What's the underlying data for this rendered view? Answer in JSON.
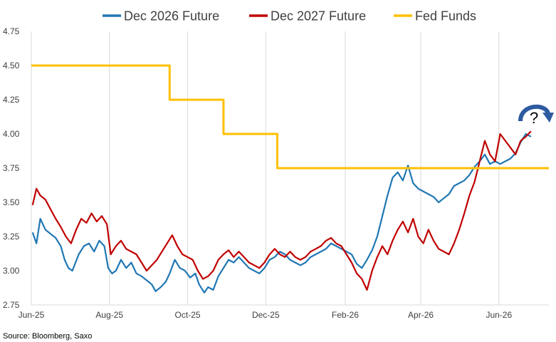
{
  "chart_data": {
    "type": "line",
    "source": "Source: Bloomberg, Saxo",
    "annotation": "?",
    "legend_position": "top",
    "grid": {
      "horizontal": false,
      "vertical": true
    },
    "colors": {
      "dec2026": "#1f77b4",
      "dec2027": "#c00000",
      "fedfunds": "#ffc000",
      "arrow": "#2e5aa0",
      "grid": "#d9d9d9"
    },
    "ylim": [
      2.75,
      4.75
    ],
    "y_ticks": [
      "4.75",
      "4.50",
      "4.25",
      "4.00",
      "3.75",
      "3.50",
      "3.25",
      "3.00",
      "2.75"
    ],
    "x_tick_labels": [
      "Jun-25",
      "Aug-25",
      "Oct-25",
      "Dec-25",
      "Feb-26",
      "Apr-26",
      "Jun-26"
    ],
    "x_tick_dates": [
      "2025-06-01",
      "2025-08-01",
      "2025-10-01",
      "2025-12-01",
      "2026-02-01",
      "2026-04-01",
      "2026-06-01"
    ],
    "x_range": [
      "2025-06-01",
      "2026-07-10"
    ],
    "series": [
      {
        "name": "Dec 2026 Future",
        "key": "dec2026",
        "points": [
          [
            "2025-06-02",
            3.28
          ],
          [
            "2025-06-05",
            3.2
          ],
          [
            "2025-06-08",
            3.38
          ],
          [
            "2025-06-12",
            3.3
          ],
          [
            "2025-06-16",
            3.27
          ],
          [
            "2025-06-20",
            3.24
          ],
          [
            "2025-06-24",
            3.18
          ],
          [
            "2025-06-27",
            3.08
          ],
          [
            "2025-06-30",
            3.02
          ],
          [
            "2025-07-03",
            3.0
          ],
          [
            "2025-07-08",
            3.12
          ],
          [
            "2025-07-12",
            3.18
          ],
          [
            "2025-07-16",
            3.2
          ],
          [
            "2025-07-20",
            3.14
          ],
          [
            "2025-07-24",
            3.22
          ],
          [
            "2025-07-28",
            3.18
          ],
          [
            "2025-07-31",
            3.02
          ],
          [
            "2025-08-03",
            2.98
          ],
          [
            "2025-08-06",
            3.0
          ],
          [
            "2025-08-10",
            3.08
          ],
          [
            "2025-08-14",
            3.02
          ],
          [
            "2025-08-18",
            3.06
          ],
          [
            "2025-08-22",
            2.98
          ],
          [
            "2025-08-26",
            2.96
          ],
          [
            "2025-08-30",
            2.93
          ],
          [
            "2025-09-03",
            2.9
          ],
          [
            "2025-09-06",
            2.85
          ],
          [
            "2025-09-10",
            2.88
          ],
          [
            "2025-09-14",
            2.92
          ],
          [
            "2025-09-17",
            2.98
          ],
          [
            "2025-09-21",
            3.08
          ],
          [
            "2025-09-25",
            3.02
          ],
          [
            "2025-09-29",
            3.0
          ],
          [
            "2025-10-03",
            2.95
          ],
          [
            "2025-10-07",
            2.98
          ],
          [
            "2025-10-10",
            2.9
          ],
          [
            "2025-10-14",
            2.84
          ],
          [
            "2025-10-17",
            2.88
          ],
          [
            "2025-10-21",
            2.86
          ],
          [
            "2025-10-25",
            2.96
          ],
          [
            "2025-10-29",
            3.02
          ],
          [
            "2025-11-02",
            3.08
          ],
          [
            "2025-11-06",
            3.06
          ],
          [
            "2025-11-10",
            3.1
          ],
          [
            "2025-11-14",
            3.06
          ],
          [
            "2025-11-18",
            3.02
          ],
          [
            "2025-11-22",
            3.0
          ],
          [
            "2025-11-26",
            2.98
          ],
          [
            "2025-11-30",
            3.02
          ],
          [
            "2025-12-04",
            3.08
          ],
          [
            "2025-12-08",
            3.1
          ],
          [
            "2025-12-12",
            3.14
          ],
          [
            "2025-12-16",
            3.12
          ],
          [
            "2025-12-20",
            3.08
          ],
          [
            "2025-12-24",
            3.06
          ],
          [
            "2025-12-28",
            3.04
          ],
          [
            "2026-01-01",
            3.06
          ],
          [
            "2026-01-05",
            3.1
          ],
          [
            "2026-01-09",
            3.12
          ],
          [
            "2026-01-13",
            3.14
          ],
          [
            "2026-01-17",
            3.16
          ],
          [
            "2026-01-21",
            3.2
          ],
          [
            "2026-01-25",
            3.18
          ],
          [
            "2026-01-29",
            3.16
          ],
          [
            "2026-02-02",
            3.14
          ],
          [
            "2026-02-06",
            3.12
          ],
          [
            "2026-02-10",
            3.05
          ],
          [
            "2026-02-14",
            3.02
          ],
          [
            "2026-02-18",
            3.08
          ],
          [
            "2026-02-22",
            3.15
          ],
          [
            "2026-02-26",
            3.25
          ],
          [
            "2026-03-02",
            3.4
          ],
          [
            "2026-03-06",
            3.55
          ],
          [
            "2026-03-10",
            3.68
          ],
          [
            "2026-03-14",
            3.72
          ],
          [
            "2026-03-18",
            3.66
          ],
          [
            "2026-03-22",
            3.77
          ],
          [
            "2026-03-26",
            3.64
          ],
          [
            "2026-03-30",
            3.6
          ],
          [
            "2026-04-03",
            3.58
          ],
          [
            "2026-04-07",
            3.56
          ],
          [
            "2026-04-11",
            3.54
          ],
          [
            "2026-04-15",
            3.5
          ],
          [
            "2026-04-19",
            3.53
          ],
          [
            "2026-04-23",
            3.56
          ],
          [
            "2026-04-27",
            3.62
          ],
          [
            "2026-05-01",
            3.64
          ],
          [
            "2026-05-05",
            3.66
          ],
          [
            "2026-05-09",
            3.7
          ],
          [
            "2026-05-13",
            3.76
          ],
          [
            "2026-05-17",
            3.8
          ],
          [
            "2026-05-21",
            3.85
          ],
          [
            "2026-05-25",
            3.78
          ],
          [
            "2026-05-29",
            3.8
          ],
          [
            "2026-06-02",
            3.78
          ],
          [
            "2026-06-06",
            3.8
          ],
          [
            "2026-06-10",
            3.82
          ],
          [
            "2026-06-14",
            3.86
          ],
          [
            "2026-06-18",
            3.94
          ],
          [
            "2026-06-22",
            4.0
          ],
          [
            "2026-06-26",
            3.98
          ]
        ]
      },
      {
        "name": "Dec 2027 Future",
        "key": "dec2027",
        "points": [
          [
            "2025-06-02",
            3.48
          ],
          [
            "2025-06-05",
            3.6
          ],
          [
            "2025-06-08",
            3.55
          ],
          [
            "2025-06-12",
            3.52
          ],
          [
            "2025-06-16",
            3.45
          ],
          [
            "2025-06-20",
            3.38
          ],
          [
            "2025-06-24",
            3.32
          ],
          [
            "2025-06-28",
            3.25
          ],
          [
            "2025-07-02",
            3.2
          ],
          [
            "2025-07-06",
            3.3
          ],
          [
            "2025-07-10",
            3.38
          ],
          [
            "2025-07-14",
            3.35
          ],
          [
            "2025-07-18",
            3.42
          ],
          [
            "2025-07-22",
            3.36
          ],
          [
            "2025-07-26",
            3.4
          ],
          [
            "2025-07-30",
            3.34
          ],
          [
            "2025-08-02",
            3.12
          ],
          [
            "2025-08-06",
            3.18
          ],
          [
            "2025-08-10",
            3.22
          ],
          [
            "2025-08-14",
            3.16
          ],
          [
            "2025-08-18",
            3.14
          ],
          [
            "2025-08-22",
            3.12
          ],
          [
            "2025-08-26",
            3.06
          ],
          [
            "2025-08-30",
            3.0
          ],
          [
            "2025-09-03",
            3.04
          ],
          [
            "2025-09-07",
            3.08
          ],
          [
            "2025-09-11",
            3.14
          ],
          [
            "2025-09-15",
            3.2
          ],
          [
            "2025-09-19",
            3.26
          ],
          [
            "2025-09-23",
            3.18
          ],
          [
            "2025-09-27",
            3.12
          ],
          [
            "2025-10-01",
            3.1
          ],
          [
            "2025-10-05",
            3.08
          ],
          [
            "2025-10-09",
            3.0
          ],
          [
            "2025-10-13",
            2.94
          ],
          [
            "2025-10-17",
            2.96
          ],
          [
            "2025-10-21",
            3.0
          ],
          [
            "2025-10-25",
            3.08
          ],
          [
            "2025-10-29",
            3.12
          ],
          [
            "2025-11-02",
            3.15
          ],
          [
            "2025-11-06",
            3.1
          ],
          [
            "2025-11-10",
            3.14
          ],
          [
            "2025-11-14",
            3.1
          ],
          [
            "2025-11-18",
            3.06
          ],
          [
            "2025-11-22",
            3.04
          ],
          [
            "2025-11-26",
            3.02
          ],
          [
            "2025-11-30",
            3.06
          ],
          [
            "2025-12-04",
            3.12
          ],
          [
            "2025-12-08",
            3.16
          ],
          [
            "2025-12-12",
            3.12
          ],
          [
            "2025-12-16",
            3.1
          ],
          [
            "2025-12-20",
            3.14
          ],
          [
            "2025-12-24",
            3.1
          ],
          [
            "2025-12-28",
            3.08
          ],
          [
            "2026-01-01",
            3.1
          ],
          [
            "2026-01-05",
            3.14
          ],
          [
            "2026-01-09",
            3.16
          ],
          [
            "2026-01-13",
            3.18
          ],
          [
            "2026-01-17",
            3.22
          ],
          [
            "2026-01-21",
            3.24
          ],
          [
            "2026-01-25",
            3.2
          ],
          [
            "2026-01-29",
            3.18
          ],
          [
            "2026-02-02",
            3.12
          ],
          [
            "2026-02-06",
            3.06
          ],
          [
            "2026-02-10",
            2.98
          ],
          [
            "2026-02-14",
            2.94
          ],
          [
            "2026-02-18",
            2.86
          ],
          [
            "2026-02-22",
            3.0
          ],
          [
            "2026-02-26",
            3.1
          ],
          [
            "2026-03-02",
            3.18
          ],
          [
            "2026-03-06",
            3.12
          ],
          [
            "2026-03-10",
            3.22
          ],
          [
            "2026-03-14",
            3.3
          ],
          [
            "2026-03-18",
            3.36
          ],
          [
            "2026-03-22",
            3.28
          ],
          [
            "2026-03-26",
            3.38
          ],
          [
            "2026-03-30",
            3.25
          ],
          [
            "2026-04-03",
            3.2
          ],
          [
            "2026-04-07",
            3.3
          ],
          [
            "2026-04-11",
            3.22
          ],
          [
            "2026-04-15",
            3.16
          ],
          [
            "2026-04-19",
            3.14
          ],
          [
            "2026-04-23",
            3.12
          ],
          [
            "2026-04-27",
            3.2
          ],
          [
            "2026-05-01",
            3.3
          ],
          [
            "2026-05-05",
            3.42
          ],
          [
            "2026-05-09",
            3.55
          ],
          [
            "2026-05-13",
            3.65
          ],
          [
            "2026-05-17",
            3.8
          ],
          [
            "2026-05-21",
            3.95
          ],
          [
            "2026-05-25",
            3.85
          ],
          [
            "2026-05-29",
            3.8
          ],
          [
            "2026-06-02",
            4.0
          ],
          [
            "2026-06-06",
            3.95
          ],
          [
            "2026-06-10",
            3.9
          ],
          [
            "2026-06-14",
            3.85
          ],
          [
            "2026-06-18",
            3.95
          ],
          [
            "2026-06-22",
            3.98
          ],
          [
            "2026-06-26",
            4.02
          ]
        ]
      },
      {
        "name": "Fed Funds",
        "key": "fedfunds",
        "step": true,
        "points": [
          [
            "2025-06-01",
            4.5
          ],
          [
            "2025-09-17",
            4.5
          ],
          [
            "2025-09-17",
            4.25
          ],
          [
            "2025-10-29",
            4.25
          ],
          [
            "2025-10-29",
            4.0
          ],
          [
            "2025-12-10",
            4.0
          ],
          [
            "2025-12-10",
            3.75
          ],
          [
            "2026-07-10",
            3.75
          ]
        ]
      }
    ]
  }
}
